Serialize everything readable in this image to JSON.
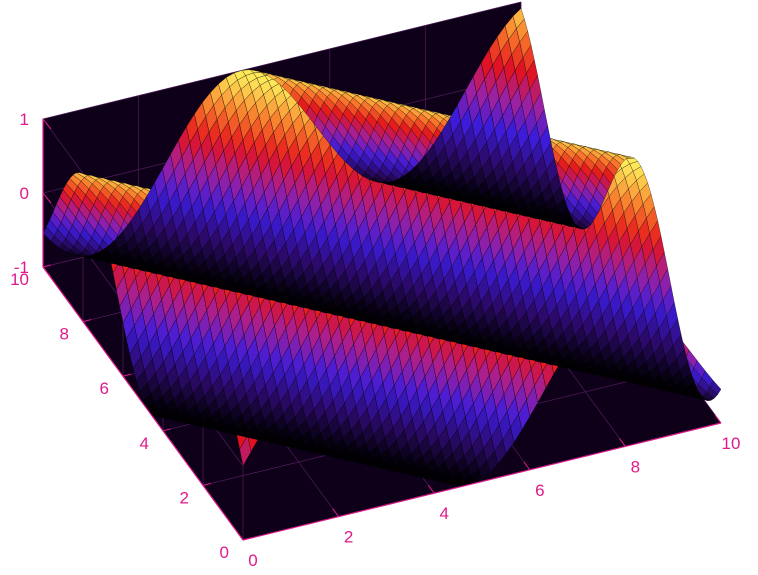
{
  "chart_data": {
    "type": "surface",
    "title": "",
    "xlabel": "",
    "ylabel": "",
    "zlabel": "",
    "function": "z = sin(x + y)",
    "xlim": [
      0,
      10
    ],
    "ylim": [
      0,
      10
    ],
    "zlim": [
      -1,
      1
    ],
    "x_ticks": [
      "0",
      "2",
      "4",
      "6",
      "8",
      "10"
    ],
    "y_ticks": [
      "0",
      "2",
      "4",
      "6",
      "8",
      "10"
    ],
    "z_ticks": [
      "-1",
      "0",
      "1"
    ],
    "grid": true,
    "mesh_lines": true,
    "colormap": [
      "#000000",
      "#2b0a6a",
      "#3c1cd8",
      "#a021a0",
      "#e3121d",
      "#f97c2c",
      "#ffee5a"
    ],
    "background_color": "#0d0018",
    "tick_color": "#e0198c"
  }
}
